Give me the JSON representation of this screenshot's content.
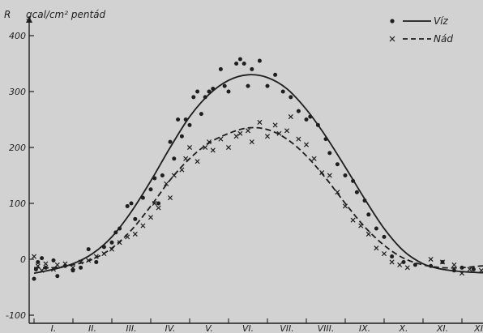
{
  "chart_data": {
    "type": "scatter",
    "ylabel": "R",
    "yunit": "gcal/cm² pentád",
    "ylim": [
      -100,
      420
    ],
    "yticks": [
      -100,
      0,
      100,
      200,
      300,
      400
    ],
    "xlim": [
      0,
      12
    ],
    "month_labels": [
      "I.",
      "II.",
      "III.",
      "IV.",
      "V.",
      "VI.",
      "VII.",
      "VIII.",
      "IX.",
      "X.",
      "XI.",
      "XII."
    ],
    "legend_position": "top-right",
    "series": [
      {
        "name": "Víz",
        "marker": "dot",
        "line_style": "solid",
        "curve": [
          [
            0.0,
            -25
          ],
          [
            0.5,
            -18
          ],
          [
            1.0,
            -8
          ],
          [
            1.5,
            10
          ],
          [
            2.0,
            40
          ],
          [
            2.5,
            85
          ],
          [
            3.0,
            140
          ],
          [
            3.5,
            200
          ],
          [
            4.0,
            255
          ],
          [
            4.5,
            295
          ],
          [
            5.0,
            320
          ],
          [
            5.5,
            330
          ],
          [
            6.0,
            325
          ],
          [
            6.5,
            305
          ],
          [
            7.0,
            268
          ],
          [
            7.5,
            220
          ],
          [
            8.0,
            165
          ],
          [
            8.5,
            108
          ],
          [
            9.0,
            55
          ],
          [
            9.5,
            15
          ],
          [
            10.0,
            -8
          ],
          [
            10.5,
            -18
          ],
          [
            11.0,
            -22
          ],
          [
            11.5,
            -24
          ],
          [
            12.0,
            -25
          ]
        ],
        "points": [
          [
            0.0,
            -35
          ],
          [
            0.05,
            -18
          ],
          [
            0.1,
            -5
          ],
          [
            0.2,
            2
          ],
          [
            0.3,
            -15
          ],
          [
            0.5,
            -2
          ],
          [
            0.6,
            -30
          ],
          [
            0.8,
            -12
          ],
          [
            1.0,
            -20
          ],
          [
            1.2,
            -15
          ],
          [
            1.4,
            18
          ],
          [
            1.6,
            -5
          ],
          [
            1.8,
            22
          ],
          [
            2.0,
            30
          ],
          [
            2.1,
            48
          ],
          [
            2.2,
            55
          ],
          [
            2.4,
            95
          ],
          [
            2.5,
            100
          ],
          [
            2.6,
            72
          ],
          [
            2.8,
            110
          ],
          [
            3.0,
            125
          ],
          [
            3.1,
            145
          ],
          [
            3.2,
            100
          ],
          [
            3.3,
            150
          ],
          [
            3.5,
            210
          ],
          [
            3.6,
            180
          ],
          [
            3.7,
            250
          ],
          [
            3.8,
            220
          ],
          [
            3.9,
            250
          ],
          [
            4.0,
            240
          ],
          [
            4.1,
            290
          ],
          [
            4.2,
            300
          ],
          [
            4.3,
            260
          ],
          [
            4.4,
            290
          ],
          [
            4.5,
            300
          ],
          [
            4.6,
            305
          ],
          [
            4.8,
            340
          ],
          [
            4.9,
            310
          ],
          [
            5.0,
            300
          ],
          [
            5.2,
            350
          ],
          [
            5.3,
            358
          ],
          [
            5.4,
            350
          ],
          [
            5.5,
            310
          ],
          [
            5.6,
            340
          ],
          [
            5.8,
            355
          ],
          [
            6.0,
            310
          ],
          [
            6.2,
            330
          ],
          [
            6.4,
            300
          ],
          [
            6.6,
            290
          ],
          [
            6.8,
            265
          ],
          [
            7.0,
            250
          ],
          [
            7.1,
            255
          ],
          [
            7.3,
            240
          ],
          [
            7.5,
            215
          ],
          [
            7.6,
            190
          ],
          [
            7.8,
            170
          ],
          [
            8.0,
            150
          ],
          [
            8.2,
            140
          ],
          [
            8.3,
            120
          ],
          [
            8.5,
            105
          ],
          [
            8.6,
            80
          ],
          [
            8.8,
            55
          ],
          [
            9.0,
            40
          ],
          [
            9.2,
            5
          ],
          [
            9.5,
            -5
          ],
          [
            9.8,
            -10
          ],
          [
            10.2,
            -12
          ],
          [
            10.5,
            -5
          ],
          [
            10.8,
            -20
          ],
          [
            11.0,
            -15
          ],
          [
            11.3,
            -18
          ],
          [
            11.6,
            -20
          ],
          [
            11.9,
            -15
          ]
        ]
      },
      {
        "name": "Nád",
        "marker": "x",
        "line_style": "dashed",
        "curve": [
          [
            0.0,
            -15
          ],
          [
            0.5,
            -15
          ],
          [
            1.0,
            -10
          ],
          [
            1.5,
            0
          ],
          [
            2.0,
            20
          ],
          [
            2.5,
            52
          ],
          [
            3.0,
            95
          ],
          [
            3.5,
            142
          ],
          [
            4.0,
            180
          ],
          [
            4.5,
            208
          ],
          [
            5.0,
            225
          ],
          [
            5.5,
            235
          ],
          [
            6.0,
            232
          ],
          [
            6.5,
            215
          ],
          [
            7.0,
            185
          ],
          [
            7.5,
            145
          ],
          [
            8.0,
            100
          ],
          [
            8.5,
            58
          ],
          [
            9.0,
            25
          ],
          [
            9.5,
            2
          ],
          [
            10.0,
            -10
          ],
          [
            10.5,
            -15
          ],
          [
            11.0,
            -15
          ],
          [
            11.5,
            -12
          ],
          [
            12.0,
            -10
          ]
        ],
        "points": [
          [
            0.0,
            5
          ],
          [
            0.1,
            -12
          ],
          [
            0.2,
            -20
          ],
          [
            0.3,
            -8
          ],
          [
            0.5,
            -18
          ],
          [
            0.6,
            -10
          ],
          [
            0.8,
            -8
          ],
          [
            1.0,
            -15
          ],
          [
            1.2,
            -5
          ],
          [
            1.4,
            -2
          ],
          [
            1.6,
            5
          ],
          [
            1.8,
            10
          ],
          [
            2.0,
            18
          ],
          [
            2.2,
            30
          ],
          [
            2.4,
            40
          ],
          [
            2.6,
            45
          ],
          [
            2.8,
            60
          ],
          [
            3.0,
            75
          ],
          [
            3.1,
            100
          ],
          [
            3.2,
            92
          ],
          [
            3.4,
            135
          ],
          [
            3.5,
            110
          ],
          [
            3.6,
            150
          ],
          [
            3.8,
            160
          ],
          [
            3.9,
            180
          ],
          [
            4.0,
            200
          ],
          [
            4.2,
            175
          ],
          [
            4.4,
            200
          ],
          [
            4.5,
            210
          ],
          [
            4.6,
            195
          ],
          [
            4.8,
            215
          ],
          [
            5.0,
            200
          ],
          [
            5.2,
            220
          ],
          [
            5.3,
            225
          ],
          [
            5.5,
            230
          ],
          [
            5.6,
            210
          ],
          [
            5.8,
            245
          ],
          [
            6.0,
            220
          ],
          [
            6.2,
            240
          ],
          [
            6.3,
            225
          ],
          [
            6.5,
            230
          ],
          [
            6.6,
            255
          ],
          [
            6.8,
            215
          ],
          [
            7.0,
            205
          ],
          [
            7.2,
            180
          ],
          [
            7.4,
            155
          ],
          [
            7.6,
            150
          ],
          [
            7.8,
            120
          ],
          [
            8.0,
            95
          ],
          [
            8.2,
            70
          ],
          [
            8.4,
            60
          ],
          [
            8.6,
            45
          ],
          [
            8.8,
            20
          ],
          [
            9.0,
            10
          ],
          [
            9.2,
            -5
          ],
          [
            9.4,
            -10
          ],
          [
            9.6,
            -15
          ],
          [
            10.2,
            0
          ],
          [
            10.5,
            -5
          ],
          [
            10.8,
            -10
          ],
          [
            11.0,
            -25
          ],
          [
            11.2,
            -18
          ],
          [
            11.5,
            -20
          ],
          [
            11.7,
            -35
          ],
          [
            11.9,
            -25
          ]
        ]
      }
    ]
  }
}
